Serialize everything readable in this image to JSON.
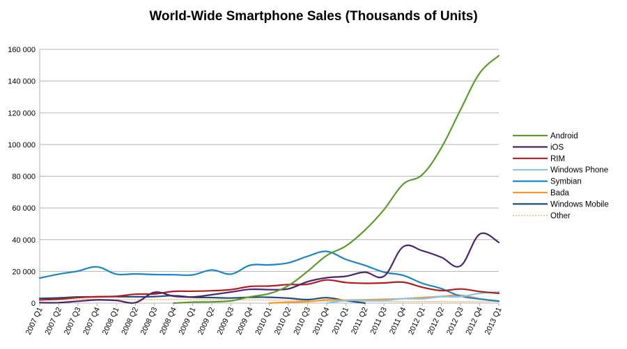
{
  "chart_data": {
    "type": "line",
    "title": "World-Wide Smartphone Sales (Thousands of Units)",
    "xlabel": "",
    "ylabel": "",
    "ylim": [
      0,
      160000
    ],
    "yticks": [
      0,
      20000,
      40000,
      60000,
      80000,
      100000,
      120000,
      140000,
      160000
    ],
    "ytick_labels": [
      "0",
      "20 000",
      "40 000",
      "60 000",
      "80 000",
      "100 000",
      "120 000",
      "140 000",
      "160 000"
    ],
    "categories": [
      "2007 Q1",
      "2007 Q2",
      "2007 Q3",
      "2007 Q4",
      "2008 Q1",
      "2008 Q2",
      "2008 Q3",
      "2008 Q4",
      "2009 Q1",
      "2009 Q2",
      "2009 Q3",
      "2009 Q4",
      "2010 Q1",
      "2010 Q2",
      "2010 Q3",
      "2010 Q4",
      "2011 Q1",
      "2011 Q2",
      "2011 Q3",
      "2011 Q4",
      "2012 Q1",
      "2012 Q2",
      "2012 Q3",
      "2012 Q4",
      "2013 Q1"
    ],
    "grid": "horizontal",
    "legend_position": "right",
    "series": [
      {
        "name": "Android",
        "color": "#5b9a2b",
        "dash": "",
        "values": [
          null,
          null,
          null,
          null,
          null,
          null,
          null,
          0,
          600,
          800,
          1400,
          4000,
          6000,
          11000,
          20000,
          30000,
          36000,
          46000,
          59000,
          75000,
          81000,
          98000,
          122000,
          145000,
          156000
        ]
      },
      {
        "name": "iOS",
        "color": "#4b2470",
        "dash": "",
        "values": [
          300,
          300,
          1200,
          2000,
          1700,
          300,
          6800,
          4400,
          3900,
          5300,
          7000,
          8700,
          8500,
          9000,
          13500,
          16000,
          16900,
          19500,
          17000,
          35500,
          33000,
          28900,
          23500,
          43500,
          38300
        ]
      },
      {
        "name": "RIM",
        "color": "#b31b1b",
        "dash": "",
        "values": [
          2000,
          2500,
          3500,
          4000,
          4300,
          5600,
          5800,
          7400,
          7500,
          7800,
          8500,
          10500,
          10800,
          11700,
          11900,
          14600,
          13000,
          12500,
          12700,
          13200,
          10000,
          7900,
          8900,
          7300,
          6200
        ]
      },
      {
        "name": "Windows Phone",
        "color": "#85c6ef",
        "dash": "",
        "values": [
          null,
          null,
          null,
          null,
          null,
          null,
          null,
          null,
          null,
          null,
          null,
          null,
          null,
          null,
          null,
          0,
          1600,
          1700,
          1700,
          2800,
          2700,
          4000,
          4100,
          6200,
          7000
        ]
      },
      {
        "name": "Symbian",
        "color": "#1a84c8",
        "dash": "",
        "values": [
          15800,
          18300,
          20200,
          22900,
          18300,
          18400,
          18000,
          17900,
          17800,
          20900,
          18300,
          23900,
          24100,
          25400,
          29500,
          32600,
          27600,
          23800,
          19500,
          17500,
          12500,
          9100,
          4400,
          2600,
          1300
        ]
      },
      {
        "name": "Bada",
        "color": "#f3982a",
        "dash": "",
        "values": [
          null,
          null,
          null,
          null,
          null,
          null,
          null,
          null,
          null,
          null,
          null,
          null,
          0,
          600,
          900,
          2000,
          1900,
          2100,
          2400,
          2800,
          3500,
          4200,
          5000,
          2700,
          1000
        ]
      },
      {
        "name": "Windows Mobile",
        "color": "#1c4d80",
        "dash": "",
        "values": [
          3000,
          3300,
          3900,
          4000,
          4100,
          4000,
          4100,
          4700,
          3700,
          3500,
          3200,
          3700,
          3700,
          3100,
          2200,
          3400,
          1600,
          0,
          null,
          null,
          null,
          null,
          null,
          null,
          null
        ]
      },
      {
        "name": "Other",
        "color": "#f3b26b",
        "dash": "2,2",
        "values": [
          2000,
          2100,
          2300,
          2500,
          2200,
          2200,
          2200,
          2300,
          2200,
          2100,
          2000,
          2000,
          1900,
          1800,
          1400,
          1300,
          1200,
          1100,
          1100,
          1000,
          1000,
          1000,
          900,
          900,
          900
        ]
      }
    ]
  }
}
